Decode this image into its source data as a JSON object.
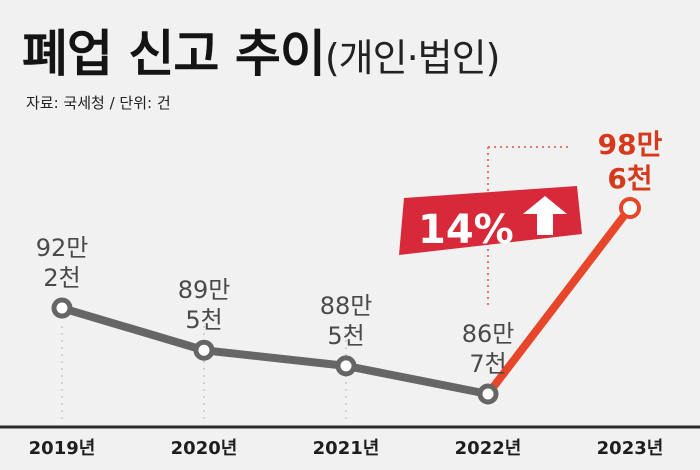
{
  "title": {
    "main": "폐업 신고 추이",
    "sub": "(개인·법인)"
  },
  "source": "자료: 국세청 / 단위: 건",
  "badge": {
    "text": "14%",
    "icon": "arrow-up-icon",
    "color": "#d8293b"
  },
  "colors": {
    "line": "#666666",
    "highlight": "#e8462a",
    "background": "#f1f1f1"
  },
  "chart_data": {
    "type": "line",
    "categories": [
      "2019년",
      "2020년",
      "2021년",
      "2022년",
      "2023년"
    ],
    "values": [
      922000,
      895000,
      885000,
      867000,
      986000
    ],
    "data_labels": [
      [
        "92만",
        "2천"
      ],
      [
        "89만",
        "5천"
      ],
      [
        "88만",
        "5천"
      ],
      [
        "86만",
        "7천"
      ],
      [
        "98만",
        "6천"
      ]
    ],
    "highlight_index": 4,
    "annotation": "14%",
    "title": "폐업 신고 추이",
    "subtitle": "(개인·법인)",
    "unit": "건",
    "grid": false
  }
}
